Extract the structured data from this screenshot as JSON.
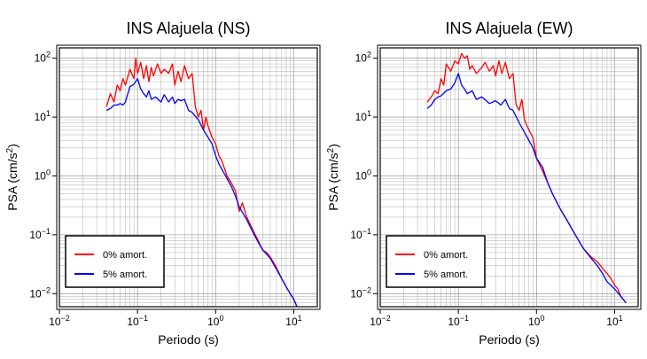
{
  "chart_data": [
    {
      "type": "line",
      "title": "INS Alajuela (NS)",
      "xlabel": "Periodo (s)",
      "ylabel_main": "PSA (cm/s",
      "ylabel_sup": "2",
      "ylabel_end": ")",
      "xscale": "log",
      "yscale": "log",
      "xlim": [
        0.01,
        20
      ],
      "ylim": [
        0.006,
        150
      ],
      "grid": true,
      "legend_position": "bottom-left",
      "x_ticks": [
        {
          "base": "10",
          "exp": "−2"
        },
        {
          "base": "10",
          "exp": "−1"
        },
        {
          "base": "10",
          "exp": "0"
        },
        {
          "base": "10",
          "exp": "1"
        }
      ],
      "y_ticks": [
        {
          "base": "10",
          "exp": "−2"
        },
        {
          "base": "10",
          "exp": "−1"
        },
        {
          "base": "10",
          "exp": "0"
        },
        {
          "base": "10",
          "exp": "1"
        },
        {
          "base": "10",
          "exp": "2"
        }
      ],
      "series": [
        {
          "name": "0% amort.",
          "color": "#ff0000",
          "x": [
            0.04,
            0.045,
            0.05,
            0.055,
            0.06,
            0.065,
            0.07,
            0.08,
            0.09,
            0.095,
            0.1,
            0.11,
            0.12,
            0.13,
            0.14,
            0.15,
            0.16,
            0.18,
            0.2,
            0.22,
            0.25,
            0.28,
            0.3,
            0.33,
            0.36,
            0.4,
            0.45,
            0.5,
            0.55,
            0.6,
            0.65,
            0.7,
            0.75,
            0.8,
            0.9,
            1.0,
            1.1,
            1.2,
            1.4,
            1.6,
            1.8,
            2.0,
            2.2,
            2.5,
            3.0,
            3.5,
            4.0,
            4.5,
            5.0,
            6.0,
            7.0,
            8.0,
            9.0,
            10.0,
            11.0
          ],
          "y": [
            15,
            25,
            18,
            35,
            28,
            45,
            35,
            65,
            45,
            100,
            55,
            85,
            45,
            75,
            40,
            70,
            50,
            80,
            55,
            65,
            55,
            80,
            35,
            60,
            40,
            75,
            45,
            55,
            15,
            10,
            13,
            6,
            10,
            7,
            4.5,
            3.5,
            2.2,
            1.8,
            1.0,
            0.75,
            0.55,
            0.25,
            0.35,
            0.2,
            0.12,
            0.08,
            0.055,
            0.05,
            0.042,
            0.028,
            0.018,
            0.013,
            0.01,
            0.008,
            0.006
          ]
        },
        {
          "name": "5% amort.",
          "color": "#0000ff",
          "x": [
            0.04,
            0.045,
            0.05,
            0.055,
            0.06,
            0.065,
            0.07,
            0.08,
            0.09,
            0.1,
            0.11,
            0.12,
            0.13,
            0.14,
            0.15,
            0.17,
            0.2,
            0.22,
            0.25,
            0.28,
            0.3,
            0.33,
            0.36,
            0.4,
            0.45,
            0.5,
            0.6,
            0.7,
            0.8,
            0.9,
            1.0,
            1.1,
            1.2,
            1.4,
            1.6,
            1.8,
            2.0,
            2.5,
            3.0,
            3.5,
            4.0,
            5.0,
            6.0,
            7.0,
            8.0,
            10.0,
            11.0
          ],
          "y": [
            13,
            14,
            16,
            16,
            17,
            16,
            18,
            33,
            36,
            45,
            30,
            25,
            22,
            28,
            20,
            22,
            18,
            24,
            18,
            22,
            17,
            20,
            19,
            20,
            13,
            12,
            9,
            6,
            4.5,
            3.5,
            2.2,
            1.6,
            1.3,
            0.9,
            0.65,
            0.45,
            0.3,
            0.18,
            0.11,
            0.075,
            0.055,
            0.04,
            0.026,
            0.018,
            0.013,
            0.008,
            0.006
          ]
        }
      ]
    },
    {
      "type": "line",
      "title": "INS Alajuela (EW)",
      "xlabel": "Periodo (s)",
      "ylabel_main": "PSA (cm/s",
      "ylabel_sup": "2",
      "ylabel_end": ")",
      "xscale": "log",
      "yscale": "log",
      "xlim": [
        0.01,
        20
      ],
      "ylim": [
        0.006,
        150
      ],
      "grid": true,
      "legend_position": "bottom-left",
      "x_ticks": [
        {
          "base": "10",
          "exp": "−2"
        },
        {
          "base": "10",
          "exp": "−1"
        },
        {
          "base": "10",
          "exp": "0"
        },
        {
          "base": "10",
          "exp": "1"
        }
      ],
      "y_ticks": [
        {
          "base": "10",
          "exp": "−2"
        },
        {
          "base": "10",
          "exp": "−1"
        },
        {
          "base": "10",
          "exp": "0"
        },
        {
          "base": "10",
          "exp": "1"
        },
        {
          "base": "10",
          "exp": "2"
        }
      ],
      "series": [
        {
          "name": "0% amort.",
          "color": "#ff0000",
          "x": [
            0.04,
            0.045,
            0.05,
            0.055,
            0.06,
            0.065,
            0.07,
            0.08,
            0.09,
            0.1,
            0.11,
            0.12,
            0.13,
            0.14,
            0.15,
            0.17,
            0.2,
            0.22,
            0.25,
            0.28,
            0.3,
            0.33,
            0.36,
            0.4,
            0.45,
            0.5,
            0.55,
            0.6,
            0.65,
            0.7,
            0.8,
            0.9,
            1.0,
            1.2,
            1.4,
            1.6,
            2.0,
            2.5,
            3.0,
            4.0,
            5.0,
            6.0,
            7.0,
            8.0,
            9.0,
            10.0,
            11.0,
            12.0,
            14.0
          ],
          "y": [
            18,
            22,
            28,
            25,
            45,
            35,
            80,
            60,
            90,
            80,
            120,
            100,
            110,
            65,
            75,
            55,
            70,
            85,
            60,
            75,
            50,
            90,
            55,
            85,
            45,
            55,
            16,
            13,
            20,
            9,
            6,
            4.5,
            2.0,
            1.2,
            0.75,
            0.5,
            0.28,
            0.17,
            0.11,
            0.058,
            0.042,
            0.035,
            0.027,
            0.022,
            0.018,
            0.014,
            0.012,
            0.009,
            0.007
          ]
        },
        {
          "name": "5% amort.",
          "color": "#0000ff",
          "x": [
            0.04,
            0.045,
            0.05,
            0.055,
            0.06,
            0.07,
            0.08,
            0.09,
            0.1,
            0.11,
            0.12,
            0.13,
            0.15,
            0.17,
            0.2,
            0.25,
            0.3,
            0.35,
            0.4,
            0.45,
            0.5,
            0.6,
            0.7,
            0.8,
            0.9,
            1.0,
            1.2,
            1.4,
            1.6,
            2.0,
            2.5,
            3.0,
            4.0,
            5.0,
            6.0,
            7.0,
            8.0,
            10.0,
            12.0,
            14.0
          ],
          "y": [
            14,
            16,
            20,
            22,
            23,
            28,
            30,
            38,
            55,
            35,
            30,
            25,
            28,
            20,
            22,
            17,
            19,
            16,
            20,
            14,
            13,
            8,
            5.5,
            4.0,
            3.0,
            2.0,
            1.4,
            0.75,
            0.5,
            0.28,
            0.17,
            0.11,
            0.058,
            0.04,
            0.03,
            0.022,
            0.016,
            0.012,
            0.009,
            0.007
          ]
        }
      ]
    }
  ]
}
